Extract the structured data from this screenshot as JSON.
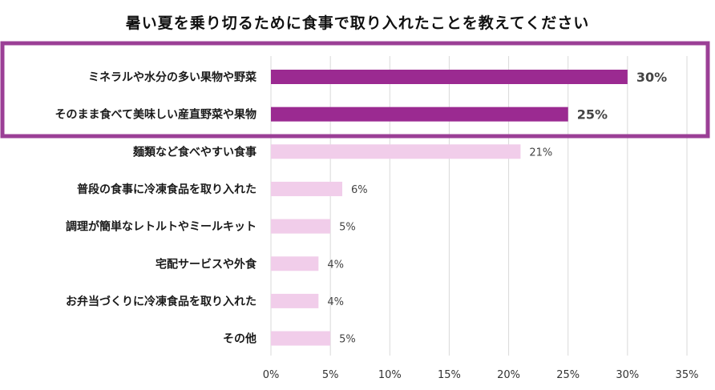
{
  "chart_data": {
    "type": "bar",
    "orientation": "horizontal",
    "title": "暑い夏を乗り切るために食事で取り入れたことを教えてください",
    "categories": [
      "ミネラルや水分の多い果物や野菜",
      "そのまま食べて美味しい産直野菜や果物",
      "麺類など食べやすい食事",
      "普段の食事に冷凍食品を取り入れた",
      "調理が簡単なレトルトやミールキット",
      "宅配サービスや外食",
      "お弁当づくりに冷凍食品を取り入れた",
      "その他"
    ],
    "values": [
      30,
      25,
      21,
      6,
      5,
      4,
      4,
      5
    ],
    "value_labels": [
      "30%",
      "25%",
      "21%",
      "6%",
      "5%",
      "4%",
      "4%",
      "5%"
    ],
    "highlighted": [
      true,
      true,
      false,
      false,
      false,
      false,
      false,
      false
    ],
    "xlim": [
      0,
      35
    ],
    "xticks": [
      0,
      5,
      10,
      15,
      20,
      25,
      30,
      35
    ],
    "xtick_labels": [
      "0%",
      "5%",
      "10%",
      "15%",
      "20%",
      "25%",
      "30%",
      "35%"
    ],
    "xlabel": "",
    "ylabel": "",
    "grid": "vertical"
  },
  "colors": {
    "highlight_bar": "#9b2a91",
    "normal_bar": "#f1cdea",
    "highlight_box": "#9b3f96",
    "grid": "#d9d9d9"
  }
}
